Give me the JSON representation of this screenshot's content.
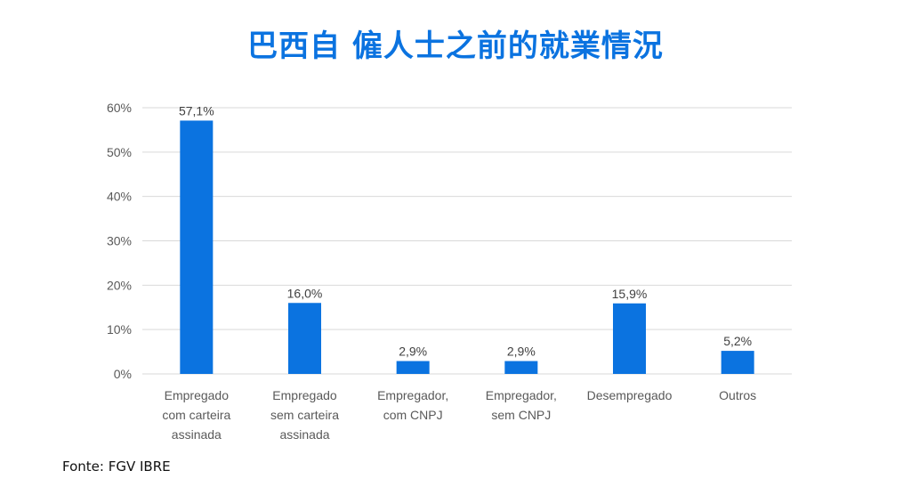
{
  "title": "巴西自 僱人士之前的就業情況",
  "source": "Fonte: FGV IBRE",
  "colors": {
    "bar": "#0b73e0",
    "title": "#0b73e0",
    "grid": "#d9d9d9",
    "axis_text": "#595959",
    "label_text": "#404040"
  },
  "chart_data": {
    "type": "bar",
    "categories": [
      "Empregado com carteira assinada",
      "Empregado sem carteira assinada",
      "Empregador, com CNPJ",
      "Empregador, sem CNPJ",
      "Desempregado",
      "Outros"
    ],
    "category_lines": [
      [
        "Empregado",
        "com carteira",
        "assinada"
      ],
      [
        "Empregado",
        "sem carteira",
        "assinada"
      ],
      [
        "Empregador,",
        "com CNPJ"
      ],
      [
        "Empregador,",
        "sem CNPJ"
      ],
      [
        "Desempregado"
      ],
      [
        "Outros"
      ]
    ],
    "values": [
      57.1,
      16.0,
      2.9,
      2.9,
      15.9,
      5.2
    ],
    "data_labels": [
      "57,1%",
      "16,0%",
      "2,9%",
      "2,9%",
      "15,9%",
      "5,2%"
    ],
    "ylim": [
      0,
      60
    ],
    "yticks": [
      0,
      10,
      20,
      30,
      40,
      50,
      60
    ],
    "ytick_labels": [
      "0%",
      "10%",
      "20%",
      "30%",
      "40%",
      "50%",
      "60%"
    ],
    "grid": true,
    "legend": "none",
    "xlabel": "",
    "ylabel": ""
  }
}
